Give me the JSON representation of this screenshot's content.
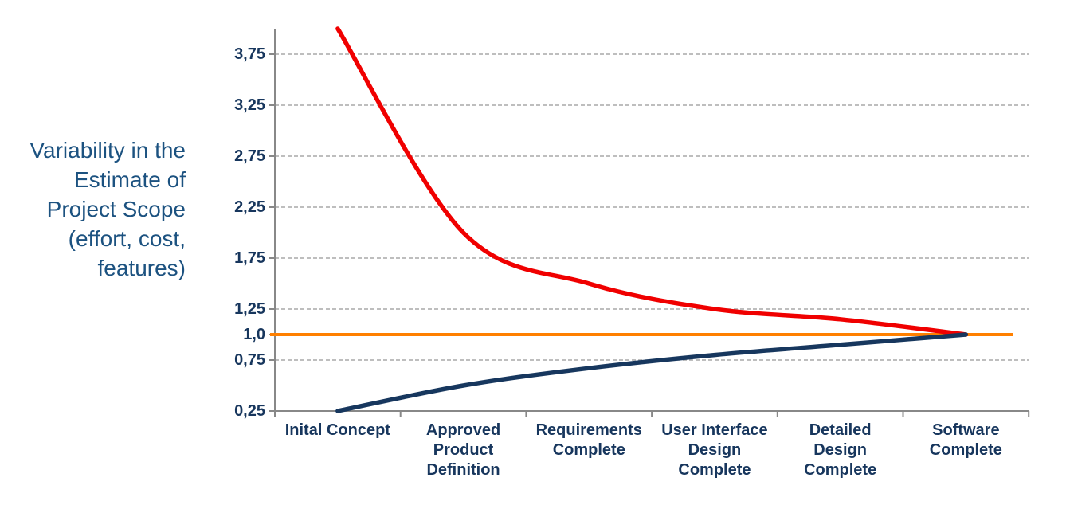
{
  "side_label": {
    "text": "Variability in the\nEstimate of\nProject Scope\n(effort, cost,\nfeatures)"
  },
  "chart_data": {
    "type": "line",
    "title": "",
    "xlabel": "",
    "ylabel": "Variability in the Estimate of Project Scope (effort, cost, features)",
    "categories": [
      "Inital Concept",
      "Approved\nProduct\nDefinition",
      "Requirements\nComplete",
      "User Interface\nDesign\nComplete",
      "Detailed\nDesign\nComplete",
      "Software\nComplete"
    ],
    "series": [
      {
        "name": "upper-estimate-variability",
        "color": "#f00000",
        "width": 5.5,
        "smooth": true,
        "values": [
          4.0,
          2.0,
          1.5,
          1.25,
          1.15,
          1.0
        ]
      },
      {
        "name": "lower-estimate-variability",
        "color": "#17375e",
        "width": 5.5,
        "smooth": true,
        "values": [
          0.25,
          0.5,
          0.67,
          0.8,
          0.9,
          1.0
        ]
      }
    ],
    "baseline": {
      "name": "baseline-1x",
      "value": 1.0,
      "color": "#ff8000",
      "width": 4
    },
    "ylim": [
      0.25,
      4.0
    ],
    "yticks": [
      {
        "value": 3.75,
        "label": "3,75"
      },
      {
        "value": 3.25,
        "label": "3,25"
      },
      {
        "value": 2.75,
        "label": "2,75"
      },
      {
        "value": 2.25,
        "label": "2,25"
      },
      {
        "value": 1.75,
        "label": "1,75"
      },
      {
        "value": 1.25,
        "label": "1,25"
      },
      {
        "value": 1.0,
        "label": "1,0"
      },
      {
        "value": 0.75,
        "label": "0,75"
      },
      {
        "value": 0.25,
        "label": "0,25"
      }
    ],
    "gridline_values": [
      3.75,
      3.25,
      2.75,
      2.25,
      1.75,
      1.25,
      0.75
    ],
    "grid": "horizontal-dashed",
    "legend": "none"
  },
  "colors": {
    "axis": "#888888",
    "gridline": "#a9a9a9",
    "tick_text": "#17365d",
    "side_label_text": "#1c5280",
    "upper_line": "#f00000",
    "lower_line": "#17375e",
    "baseline": "#ff8000",
    "background": "#ffffff"
  }
}
